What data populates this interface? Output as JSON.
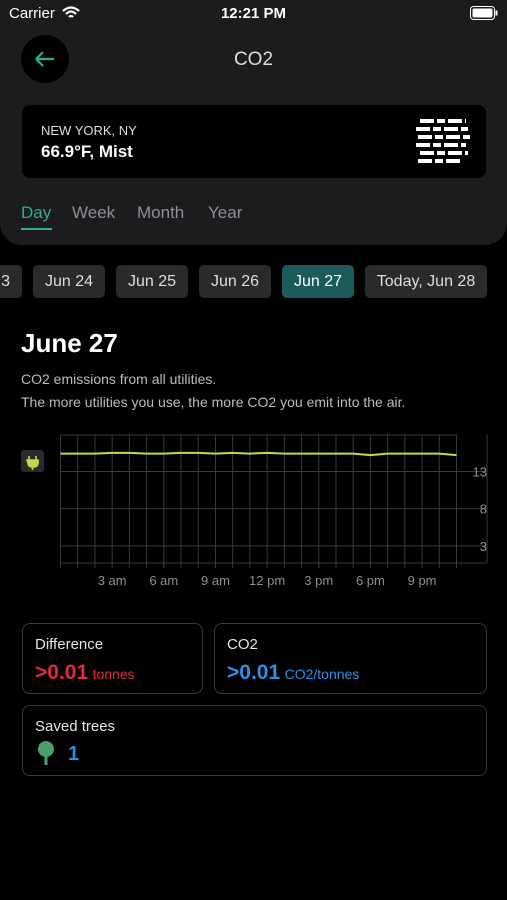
{
  "status_bar": {
    "carrier": "Carrier",
    "time": "12:21 PM"
  },
  "header": {
    "title": "CO2"
  },
  "weather": {
    "location": "NEW YORK, NY",
    "conditions": "66.9°F, Mist"
  },
  "tabs": [
    "Day",
    "Week",
    "Month",
    "Year"
  ],
  "dates": [
    "3",
    "Jun 24",
    "Jun 25",
    "Jun 26",
    "Jun 27",
    "Today, Jun 28"
  ],
  "selected_date": "Jun 27",
  "heading": "June 27",
  "description": [
    "CO2 emissions from all utilities.",
    "The more utilities you use, the more CO2 you emit into the air."
  ],
  "chart_data": {
    "type": "line",
    "x": [
      0,
      1,
      2,
      3,
      4,
      5,
      6,
      7,
      8,
      9,
      10,
      11,
      12,
      13,
      14,
      15,
      16,
      17,
      18,
      19,
      20,
      21,
      22,
      23
    ],
    "series": [
      {
        "color": "#c9d64a",
        "values": [
          15.4,
          15.4,
          15.4,
          15.5,
          15.5,
          15.4,
          15.4,
          15.5,
          15.5,
          15.4,
          15.5,
          15.4,
          15.5,
          15.4,
          15.4,
          15.4,
          15.4,
          15.4,
          15.2,
          15.4,
          15.4,
          15.4,
          15.4,
          15.2
        ]
      }
    ],
    "xlim": [
      0,
      23
    ],
    "ylim": [
      0.7,
      17.9
    ],
    "xticks": [
      {
        "value": 3,
        "label": "3 am"
      },
      {
        "value": 6,
        "label": "6 am"
      },
      {
        "value": 9,
        "label": "9 am"
      },
      {
        "value": 12,
        "label": "12 pm"
      },
      {
        "value": 15,
        "label": "3 pm"
      },
      {
        "value": 18,
        "label": "6 pm"
      },
      {
        "value": 21,
        "label": "9 pm"
      }
    ],
    "yticks": [
      3,
      8,
      13
    ],
    "grid": true
  },
  "stats": {
    "difference": {
      "label": "Difference",
      "value": ">0.01",
      "unit": "tonnes"
    },
    "co2": {
      "label": "CO2",
      "value": ">0.01",
      "unit": "CO2/tonnes"
    },
    "trees": {
      "label": "Saved trees",
      "value": "1"
    }
  }
}
